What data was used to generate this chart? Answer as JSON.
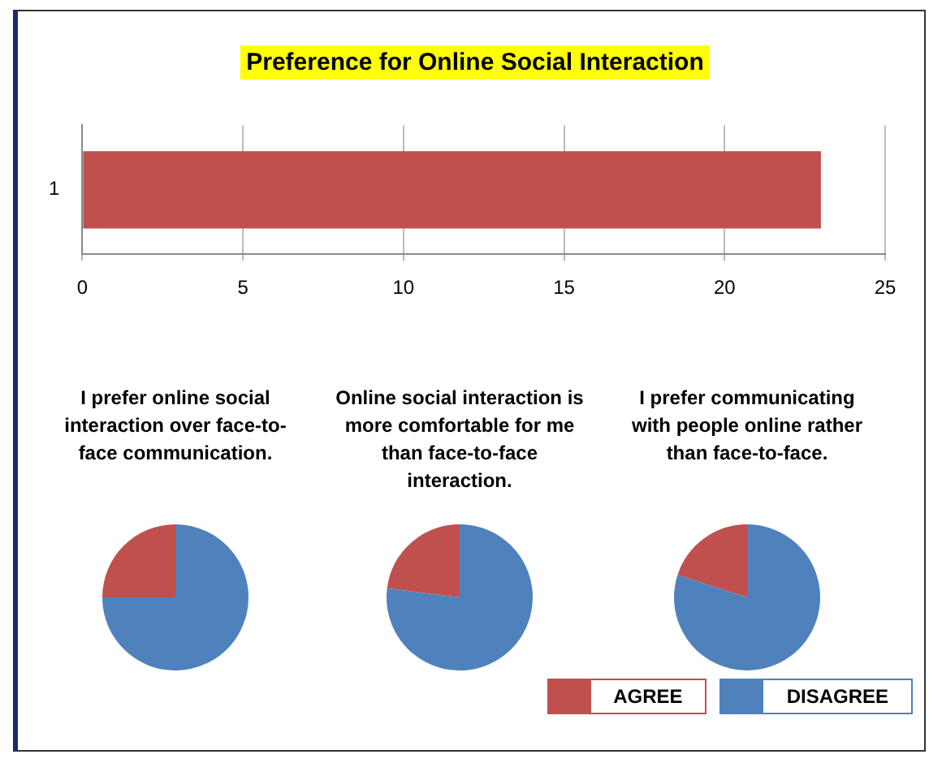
{
  "chart_data": [
    {
      "type": "bar",
      "orientation": "horizontal",
      "title": "Preference for Online Social Interaction",
      "categories": [
        "1"
      ],
      "values": [
        23
      ],
      "color": "#c0504d",
      "xlim": [
        0,
        25
      ],
      "xticks": [
        0,
        5,
        10,
        15,
        20,
        25
      ],
      "grid": "x"
    },
    {
      "type": "pie",
      "title": "I prefer online social interaction over face-to-face communication.",
      "categories": [
        "AGREE",
        "DISAGREE"
      ],
      "values": [
        25,
        75
      ],
      "colors": [
        "#c0504d",
        "#4f81bd"
      ],
      "legend": "bottom right"
    },
    {
      "type": "pie",
      "title": "Online social interaction is more comfortable for me than face-to-face interaction.",
      "categories": [
        null,
        null
      ],
      "values": [
        23,
        77
      ],
      "colors": [
        "#c0504d",
        "#4f81bd"
      ]
    },
    {
      "type": "pie",
      "title": "I prefer communicating with people online rather than face-to-face.",
      "categories": [
        null,
        null
      ],
      "values": [
        20,
        80
      ],
      "colors": [
        "#c0504d",
        "#4f81bd"
      ]
    }
  ]
}
